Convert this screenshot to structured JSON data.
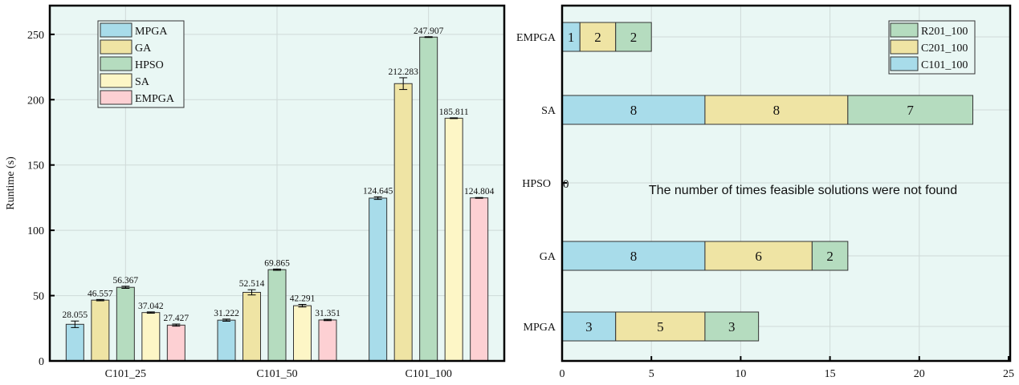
{
  "chart_data": [
    {
      "type": "bar",
      "ylabel": "Runtime (s)",
      "xlabel": "",
      "ylim": [
        0,
        272
      ],
      "yticks": [
        0,
        50,
        100,
        150,
        200,
        250
      ],
      "categories": [
        "C101_25",
        "C101_50",
        "C101_100"
      ],
      "legend_position": "top-left",
      "grid": true,
      "series": [
        {
          "name": "MPGA",
          "color": "#a8dcea",
          "values": [
            28.055,
            31.222,
            124.645
          ],
          "errors": [
            2.5,
            0.8,
            1.0
          ],
          "labels": [
            "28.055",
            "31.222",
            "124.645"
          ]
        },
        {
          "name": "GA",
          "color": "#efe4a4",
          "values": [
            46.557,
            52.514,
            212.283
          ],
          "errors": [
            0.5,
            2.0,
            4.5
          ],
          "labels": [
            "46.557",
            "52.514",
            "212.283"
          ]
        },
        {
          "name": "HPSO",
          "color": "#b5dcbf",
          "values": [
            56.367,
            69.865,
            247.907
          ],
          "errors": [
            0.8,
            0.5,
            0.3
          ],
          "labels": [
            "56.367",
            "69.865",
            "247.907"
          ]
        },
        {
          "name": "SA",
          "color": "#fdf6c6",
          "values": [
            37.042,
            42.291,
            185.811
          ],
          "errors": [
            0.5,
            1.0,
            0.3
          ],
          "labels": [
            "37.042",
            "42.291",
            "185.811"
          ]
        },
        {
          "name": "EMPGA",
          "color": "#fdd0d3",
          "values": [
            27.427,
            31.351,
            124.804
          ],
          "errors": [
            0.8,
            0.5,
            0.3
          ],
          "labels": [
            "27.427",
            "31.351",
            "124.804"
          ]
        }
      ]
    },
    {
      "type": "bar",
      "orientation": "horizontal",
      "stacked": true,
      "xlim": [
        0,
        25
      ],
      "xticks": [
        0,
        5,
        10,
        15,
        20,
        25
      ],
      "categories": [
        "EMPGA",
        "SA",
        "HPSO",
        "GA",
        "MPGA"
      ],
      "legend_position": "top-right",
      "grid": true,
      "annotation": "The number of times feasible solutions were not found",
      "hpso_label": "0",
      "series": [
        {
          "name": "C101_100",
          "color": "#a8dcea",
          "values": [
            1,
            8,
            0,
            8,
            3
          ]
        },
        {
          "name": "C201_100",
          "color": "#efe4a4",
          "values": [
            2,
            8,
            0,
            6,
            5
          ]
        },
        {
          "name": "R201_100",
          "color": "#b5dcbf",
          "values": [
            2,
            7,
            0,
            2,
            3
          ]
        }
      ],
      "legend_order": [
        "R201_100",
        "C201_100",
        "C101_100"
      ]
    }
  ]
}
